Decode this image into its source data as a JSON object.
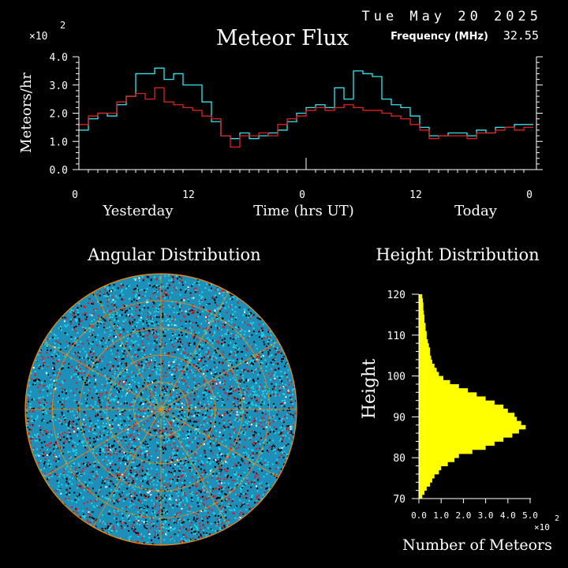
{
  "header": {
    "date": "Tue May 20 2025",
    "title": "Meteor Flux",
    "frequency_label": "Frequency (MHz)",
    "frequency_value": "32.55"
  },
  "colors": {
    "background": "#000000",
    "axis": "#ffffff",
    "series_cyan": "#33e6ee",
    "series_red": "#dd2222",
    "height_bars": "#ffff00",
    "sky_cyan": "#22d8e8",
    "sky_red": "#e01818",
    "sky_grid": "#ff8800"
  },
  "chart_data": [
    {
      "id": "flux",
      "type": "line",
      "step": true,
      "title": "Meteor Flux",
      "ylabel": "Meteors/hr",
      "xlabel": "Time (hrs UT)",
      "y_multiplier": "×10",
      "y_multiplier_exp": "2",
      "ylim": [
        0,
        4
      ],
      "y_ticks": [
        "0.0",
        "1.0",
        "2.0",
        "3.0",
        "4.0"
      ],
      "x_ticks": [
        "0",
        "12",
        "0",
        "12",
        "0"
      ],
      "x_tick_hours": [
        0,
        12,
        24,
        36,
        48
      ],
      "day_labels": [
        "Yesterday",
        "Today"
      ],
      "x_hours": [
        0,
        1,
        2,
        3,
        4,
        5,
        6,
        7,
        8,
        9,
        10,
        11,
        12,
        13,
        14,
        15,
        16,
        17,
        18,
        19,
        20,
        21,
        22,
        23,
        24,
        25,
        26,
        27,
        28,
        29,
        30,
        31,
        32,
        33,
        34,
        35,
        36,
        37,
        38,
        39,
        40,
        41,
        42,
        43,
        44,
        45,
        46,
        47
      ],
      "series": [
        {
          "color": "cyan",
          "values": [
            1.4,
            1.8,
            2.0,
            1.9,
            2.3,
            2.6,
            3.4,
            3.4,
            3.6,
            3.2,
            3.4,
            3.0,
            3.0,
            2.4,
            1.7,
            1.2,
            1.1,
            1.3,
            1.1,
            1.2,
            1.3,
            1.4,
            1.7,
            2.0,
            2.2,
            2.3,
            2.2,
            2.9,
            2.5,
            3.5,
            3.4,
            3.3,
            2.5,
            2.3,
            2.2,
            1.9,
            1.5,
            1.2,
            1.2,
            1.3,
            1.3,
            1.2,
            1.4,
            1.3,
            1.5,
            1.5,
            1.6,
            1.6
          ]
        },
        {
          "color": "red",
          "values": [
            1.6,
            1.9,
            2.0,
            2.0,
            2.4,
            2.6,
            2.7,
            2.5,
            2.9,
            2.4,
            2.3,
            2.2,
            2.1,
            1.9,
            1.8,
            1.2,
            0.8,
            1.2,
            1.2,
            1.3,
            1.2,
            1.6,
            1.8,
            1.9,
            2.1,
            2.2,
            2.1,
            2.2,
            2.3,
            2.2,
            2.1,
            2.1,
            2.0,
            1.9,
            1.8,
            1.6,
            1.4,
            1.1,
            1.2,
            1.2,
            1.2,
            1.1,
            1.3,
            1.3,
            1.4,
            1.5,
            1.4,
            1.5
          ]
        }
      ]
    },
    {
      "id": "height",
      "type": "bar",
      "orientation": "horizontal",
      "title": "Height Distribution",
      "ylabel": "Height",
      "xlabel": "Number of Meteors",
      "x_multiplier": "×10",
      "x_multiplier_exp": "2",
      "xlim": [
        0,
        5
      ],
      "x_ticks": [
        "0.0",
        "1.0",
        "2.0",
        "3.0",
        "4.0",
        "5.0"
      ],
      "ylim": [
        70,
        120
      ],
      "y_ticks": [
        "70",
        "80",
        "90",
        "100",
        "110",
        "120"
      ],
      "height_bins": [
        70,
        71,
        72,
        73,
        74,
        75,
        76,
        77,
        78,
        79,
        80,
        81,
        82,
        83,
        84,
        85,
        86,
        87,
        88,
        89,
        90,
        91,
        92,
        93,
        94,
        95,
        96,
        97,
        98,
        99,
        100,
        101,
        102,
        103,
        104,
        105,
        106,
        107,
        108,
        109,
        110,
        111,
        112,
        113,
        114,
        115,
        116,
        117,
        118,
        119
      ],
      "values": [
        0.15,
        0.25,
        0.35,
        0.5,
        0.6,
        0.7,
        0.9,
        1.0,
        1.3,
        1.6,
        1.8,
        2.4,
        3.0,
        3.4,
        3.8,
        4.2,
        4.5,
        4.8,
        4.6,
        4.4,
        4.3,
        4.0,
        3.8,
        3.4,
        3.0,
        2.6,
        2.2,
        1.8,
        1.4,
        1.1,
        0.9,
        0.8,
        0.7,
        0.6,
        0.55,
        0.5,
        0.5,
        0.45,
        0.4,
        0.35,
        0.35,
        0.3,
        0.3,
        0.25,
        0.25,
        0.22,
        0.2,
        0.2,
        0.18,
        0.15
      ]
    }
  ],
  "angular": {
    "title": "Angular Distribution"
  }
}
